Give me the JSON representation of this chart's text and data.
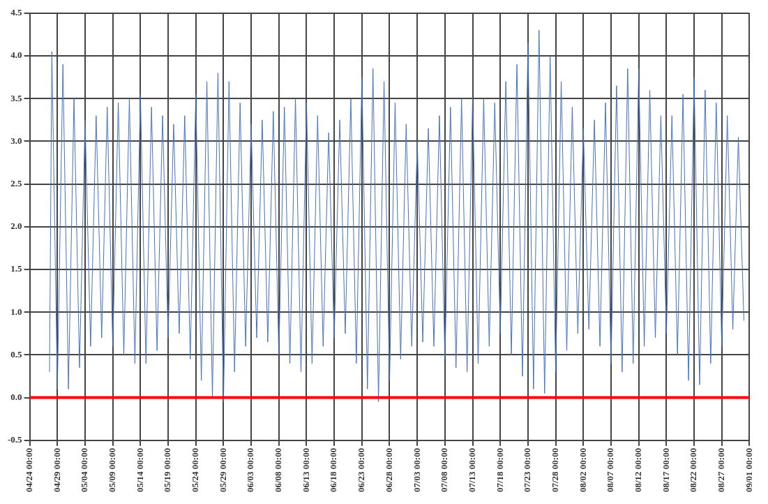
{
  "chart_data": {
    "type": "line",
    "x": [
      "--04-27T14:00",
      "--04-28",
      "--04-29",
      "--04-30",
      "--05-01",
      "--05-02",
      "--05-03",
      "--05-04",
      "--05-05",
      "--05-06",
      "--05-07",
      "--05-08",
      "--05-09",
      "--05-10",
      "--05-11",
      "--05-12",
      "--05-13",
      "--05-14",
      "--05-15",
      "--05-16",
      "--05-17",
      "--05-18",
      "--05-19",
      "--05-20",
      "--05-21",
      "--05-22",
      "--05-23",
      "--05-24",
      "--05-25",
      "--05-26",
      "--05-27",
      "--05-28",
      "--05-29",
      "--05-30",
      "--05-31",
      "--06-01",
      "--06-02",
      "--06-03",
      "--06-04",
      "--06-05",
      "--06-06",
      "--06-07",
      "--06-08",
      "--06-09",
      "--06-10",
      "--06-11",
      "--06-12",
      "--06-13",
      "--06-14",
      "--06-15",
      "--06-16",
      "--06-17",
      "--06-18",
      "--06-19",
      "--06-20",
      "--06-21",
      "--06-22",
      "--06-23",
      "--06-24",
      "--06-25",
      "--06-26",
      "--06-27",
      "--06-28",
      "--06-29",
      "--06-30",
      "--07-01",
      "--07-02",
      "--07-03",
      "--07-04",
      "--07-05",
      "--07-06",
      "--07-07",
      "--07-08",
      "--07-09",
      "--07-10",
      "--07-11",
      "--07-12",
      "--07-13",
      "--07-14",
      "--07-15",
      "--07-16",
      "--07-17",
      "--07-18",
      "--07-19",
      "--07-20",
      "--07-21",
      "--07-22",
      "--07-23",
      "--07-24",
      "--07-25",
      "--07-26",
      "--07-27",
      "--07-28",
      "--07-29",
      "--07-30",
      "--07-31",
      "--08-01",
      "--08-02",
      "--08-03",
      "--08-04",
      "--08-05",
      "--08-06",
      "--08-07",
      "--08-08",
      "--08-09",
      "--08-10",
      "--08-11",
      "--08-12",
      "--08-13",
      "--08-14",
      "--08-15",
      "--08-16",
      "--08-17",
      "--08-18",
      "--08-19",
      "--08-20",
      "--08-21",
      "--08-22",
      "--08-23",
      "--08-24",
      "--08-25",
      "--08-26",
      "--08-27",
      "--08-28",
      "--08-29",
      "--08-30",
      "--08-31"
    ],
    "series": [
      {
        "color": "#4472c4",
        "values": [
          0.3,
          4.05,
          0.1,
          3.9,
          0.1,
          3.5,
          0.35,
          3.25,
          0.6,
          3.3,
          0.7,
          3.4,
          0.6,
          3.45,
          0.5,
          3.5,
          0.4,
          3.55,
          0.4,
          3.4,
          0.55,
          3.3,
          0.7,
          3.2,
          0.75,
          3.3,
          0.45,
          3.55,
          0.2,
          3.7,
          0.0,
          3.8,
          -0.05,
          3.7,
          0.3,
          3.45,
          0.6,
          3.2,
          0.7,
          3.25,
          0.65,
          3.35,
          0.5,
          3.4,
          0.4,
          3.5,
          0.3,
          3.45,
          0.4,
          3.3,
          0.6,
          3.1,
          0.7,
          3.25,
          0.75,
          3.5,
          0.4,
          3.75,
          0.1,
          3.85,
          -0.05,
          3.7,
          0.2,
          3.45,
          0.45,
          3.2,
          0.6,
          3.0,
          0.65,
          3.15,
          0.6,
          3.3,
          0.45,
          3.4,
          0.35,
          3.5,
          0.3,
          3.5,
          0.4,
          3.5,
          0.6,
          3.45,
          0.75,
          3.7,
          0.5,
          3.9,
          0.25,
          4.15,
          0.1,
          4.3,
          0.05,
          4.0,
          0.3,
          3.7,
          0.55,
          3.4,
          0.75,
          3.15,
          0.8,
          3.25,
          0.6,
          3.45,
          0.4,
          3.65,
          0.3,
          3.85,
          0.4,
          3.85,
          0.6,
          3.6,
          0.7,
          3.3,
          0.75,
          3.3,
          0.5,
          3.55,
          0.2,
          3.75,
          0.15,
          3.6,
          0.4,
          3.45,
          0.6,
          3.3,
          0.8,
          3.05,
          0.9
        ]
      }
    ],
    "xlim": [
      "--04-24",
      "--09-01"
    ],
    "xticks": [
      {
        "value": "--04-24",
        "label": "04/24 00:00"
      },
      {
        "value": "--04-29",
        "label": "04/29 00:00"
      },
      {
        "value": "--05-04",
        "label": "05/04 00:00"
      },
      {
        "value": "--05-09",
        "label": "05/09 00:00"
      },
      {
        "value": "--05-14",
        "label": "05/14 00:00"
      },
      {
        "value": "--05-19",
        "label": "05/19 00:00"
      },
      {
        "value": "--05-24",
        "label": "05/24 00:00"
      },
      {
        "value": "--05-29",
        "label": "05/29 00:00"
      },
      {
        "value": "--06-03",
        "label": "06/03 00:00"
      },
      {
        "value": "--06-08",
        "label": "06/08 00:00"
      },
      {
        "value": "--06-13",
        "label": "06/13 00:00"
      },
      {
        "value": "--06-18",
        "label": "06/18 00:00"
      },
      {
        "value": "--06-23",
        "label": "06/23 00:00"
      },
      {
        "value": "--06-28",
        "label": "06/28 00:00"
      },
      {
        "value": "--07-03",
        "label": "07/03 00:00"
      },
      {
        "value": "--07-08",
        "label": "07/08 00:00"
      },
      {
        "value": "--07-13",
        "label": "07/13 00:00"
      },
      {
        "value": "--07-18",
        "label": "07/18 00:00"
      },
      {
        "value": "--07-23",
        "label": "07/23 00:00"
      },
      {
        "value": "--07-28",
        "label": "07/28 00:00"
      },
      {
        "value": "--08-02",
        "label": "08/02 00:00"
      },
      {
        "value": "--08-07",
        "label": "08/07 00:00"
      },
      {
        "value": "--08-12",
        "label": "08/12 00:00"
      },
      {
        "value": "--08-17",
        "label": "08/17 00:00"
      },
      {
        "value": "--08-22",
        "label": "08/22 00:00"
      },
      {
        "value": "--08-27",
        "label": "08/27 00:00"
      },
      {
        "value": "--09-01",
        "label": "09/01 00:00"
      }
    ],
    "ylim": [
      -0.5,
      4.5
    ],
    "yticks": [
      {
        "value": -0.5,
        "label": "-0.5"
      },
      {
        "value": 0,
        "label": "0.0"
      },
      {
        "value": 0.5,
        "label": "0.5"
      },
      {
        "value": 1,
        "label": "1.0"
      },
      {
        "value": 1.5,
        "label": "1.5"
      },
      {
        "value": 2,
        "label": "2.0"
      },
      {
        "value": 2.5,
        "label": "2.5"
      },
      {
        "value": 3,
        "label": "3.0"
      },
      {
        "value": 3.5,
        "label": "3.5"
      },
      {
        "value": 4,
        "label": "4.0"
      },
      {
        "value": 4.5,
        "label": "4.5"
      }
    ],
    "ref_lines": [
      {
        "axis": "y",
        "value": 0,
        "color": "#ff0000"
      }
    ],
    "grid": true
  }
}
